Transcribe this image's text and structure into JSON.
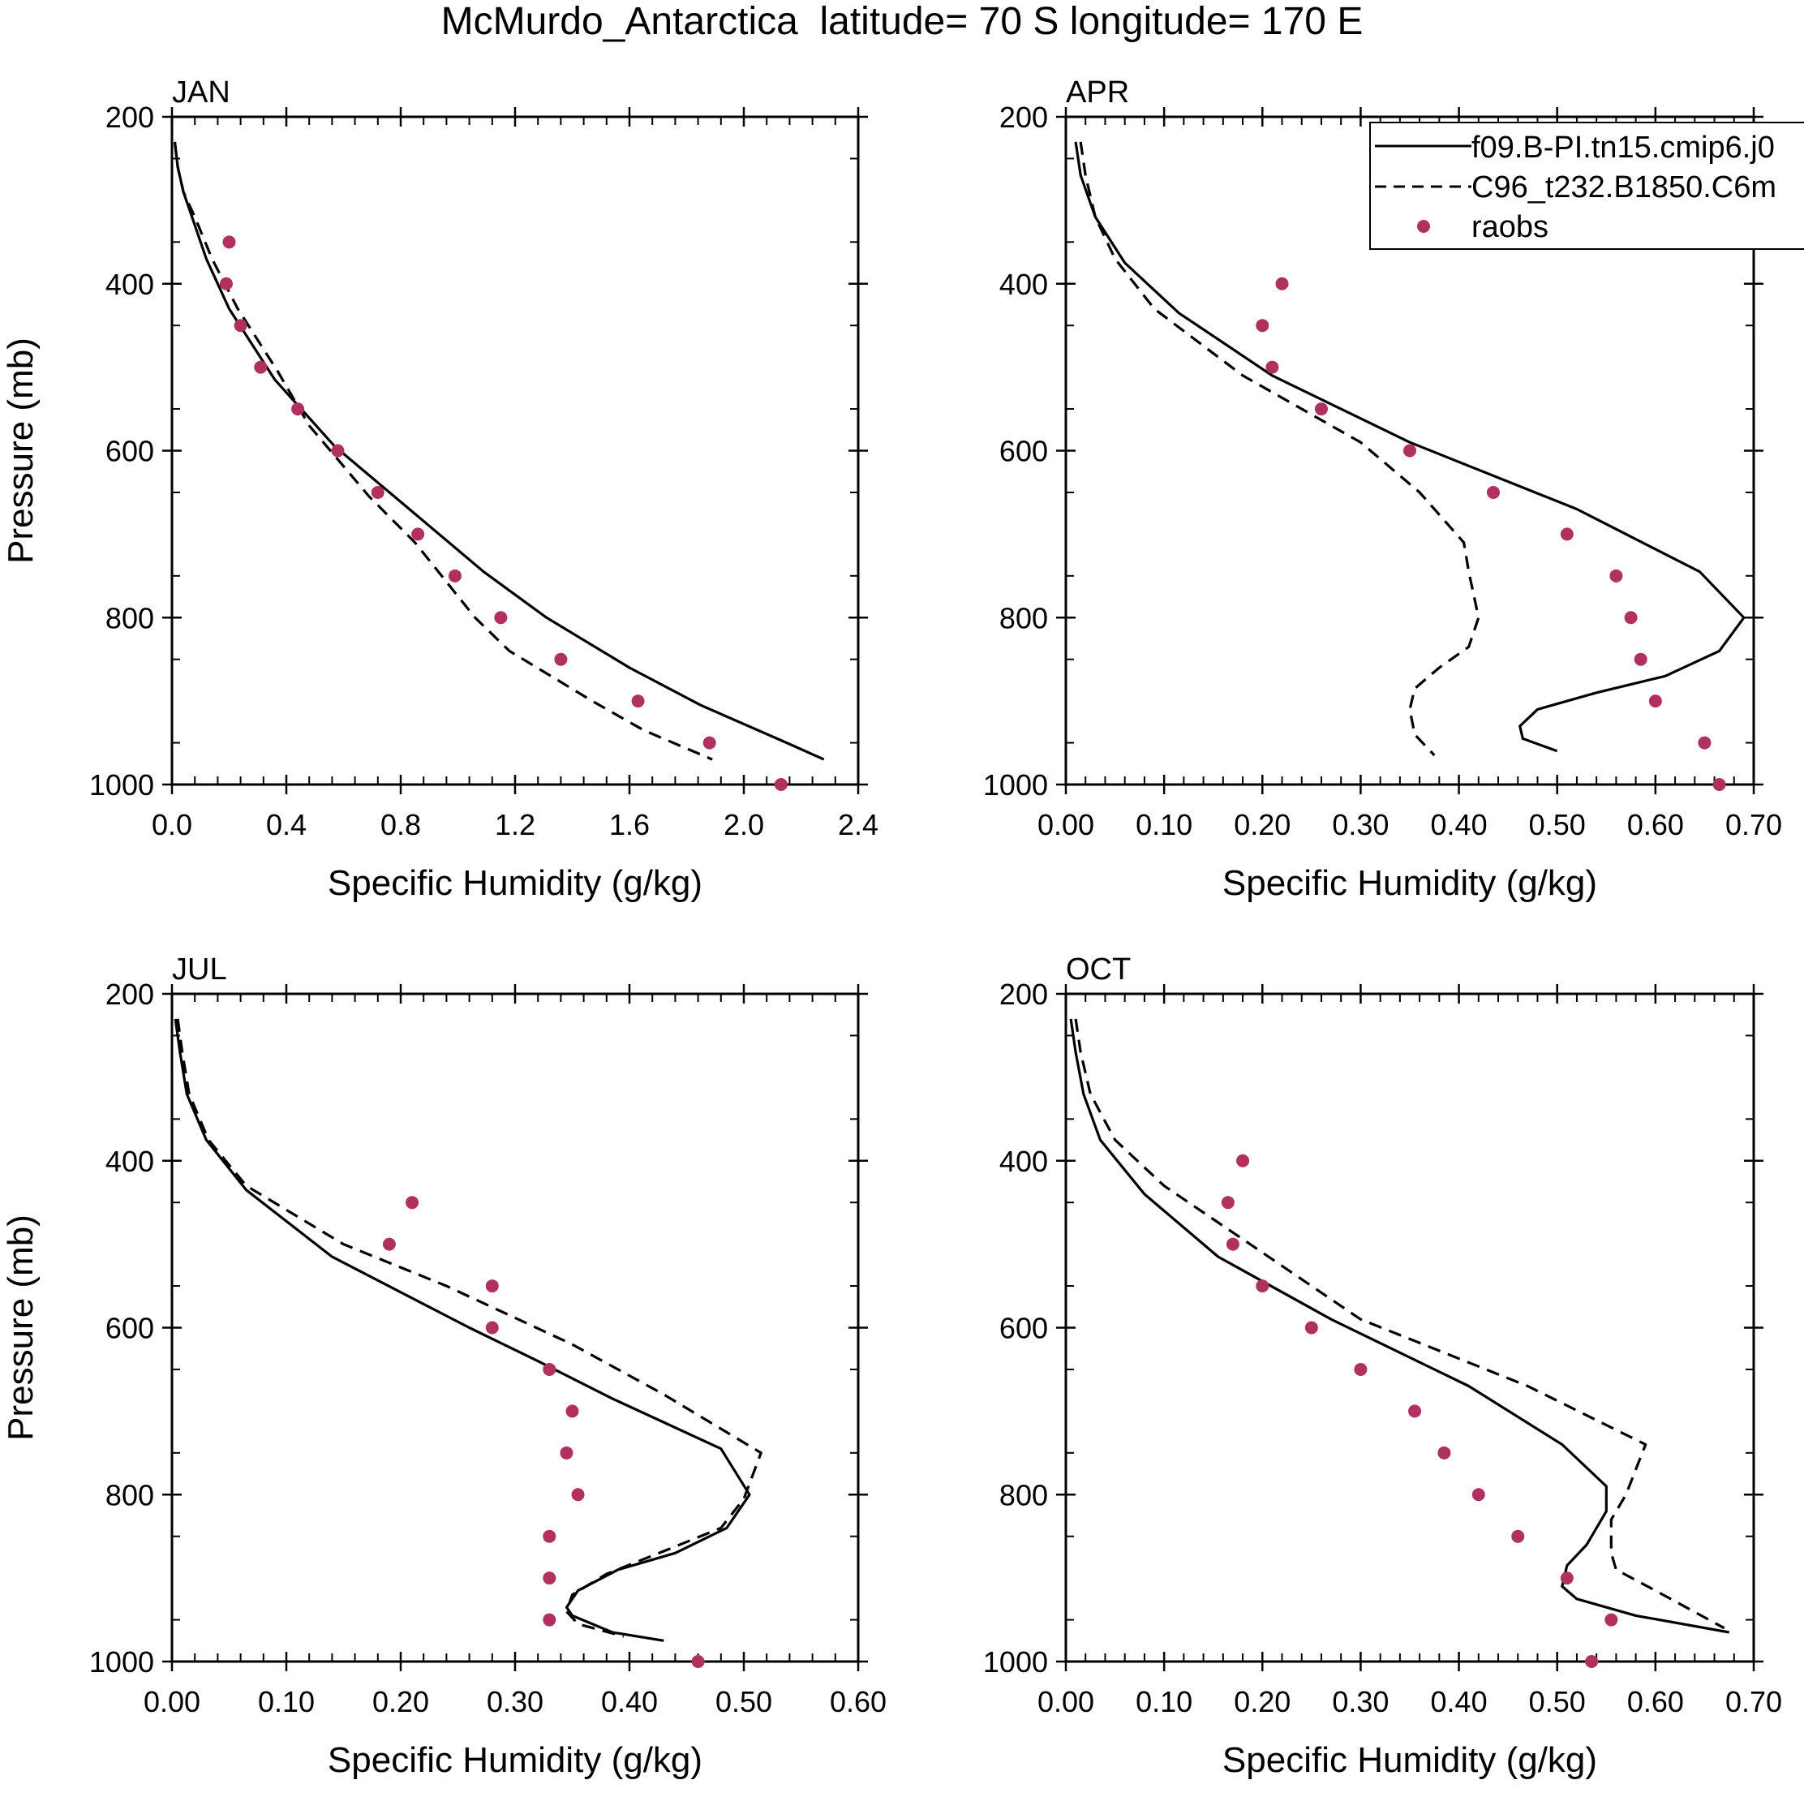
{
  "figure_title": "McMurdo_Antarctica  latitude= 70 S longitude= 170 E",
  "legend": {
    "entries": [
      {
        "label": "f09.B-PI.tn15.cmip6.j0",
        "style": "solid"
      },
      {
        "label": "C96_t232.B1850.C6m",
        "style": "dashed"
      },
      {
        "label": "raobs",
        "style": "dot"
      }
    ]
  },
  "colors": {
    "obs": "#b03060",
    "line": "#000000"
  },
  "chart_data": [
    {
      "type": "line",
      "panel": "JAN",
      "xlabel": "Specific Humidity (g/kg)",
      "ylabel": "Pressure (mb)",
      "xlim": [
        0,
        2.4
      ],
      "ylim": [
        200,
        1000
      ],
      "y_inverted": true,
      "xticks": [
        0,
        0.4,
        0.8,
        1.2,
        1.6,
        2.0,
        2.4
      ],
      "xtick_labels": [
        "0.0",
        "0.4",
        "0.8",
        "1.2",
        "1.6",
        "2.0",
        "2.4"
      ],
      "yticks": [
        200,
        400,
        600,
        800,
        1000
      ],
      "ytick_labels": [
        "200",
        "400",
        "600",
        "800",
        "1000"
      ],
      "series": [
        {
          "name": "f09.B-PI.tn15.cmip6.j0",
          "style": "solid",
          "points": [
            [
              0.01,
              230
            ],
            [
              0.02,
              260
            ],
            [
              0.04,
              290
            ],
            [
              0.07,
              320
            ],
            [
              0.12,
              370
            ],
            [
              0.2,
              430
            ],
            [
              0.36,
              515
            ],
            [
              0.57,
              595
            ],
            [
              0.83,
              670
            ],
            [
              1.09,
              745
            ],
            [
              1.31,
              800
            ],
            [
              1.6,
              860
            ],
            [
              1.85,
              905
            ],
            [
              2.15,
              950
            ],
            [
              2.28,
              970
            ]
          ]
        },
        {
          "name": "C96_t232.B1850.C6m",
          "style": "dashed",
          "points": [
            [
              0.01,
              230
            ],
            [
              0.02,
              260
            ],
            [
              0.04,
              290
            ],
            [
              0.08,
              320
            ],
            [
              0.14,
              370
            ],
            [
              0.23,
              430
            ],
            [
              0.37,
              505
            ],
            [
              0.48,
              570
            ],
            [
              0.69,
              655
            ],
            [
              0.85,
              710
            ],
            [
              1.06,
              800
            ],
            [
              1.18,
              840
            ],
            [
              1.47,
              900
            ],
            [
              1.65,
              935
            ],
            [
              1.89,
              970
            ]
          ]
        },
        {
          "name": "raobs",
          "style": "dot",
          "points": [
            [
              0.2,
              350
            ],
            [
              0.19,
              400
            ],
            [
              0.24,
              450
            ],
            [
              0.31,
              500
            ],
            [
              0.44,
              550
            ],
            [
              0.58,
              600
            ],
            [
              0.72,
              650
            ],
            [
              0.86,
              700
            ],
            [
              0.99,
              750
            ],
            [
              1.15,
              800
            ],
            [
              1.36,
              850
            ],
            [
              1.63,
              900
            ],
            [
              1.88,
              950
            ],
            [
              2.13,
              1000
            ]
          ]
        }
      ]
    },
    {
      "type": "line",
      "panel": "APR",
      "xlabel": "Specific Humidity (g/kg)",
      "ylabel": "",
      "xlim": [
        0,
        0.7
      ],
      "ylim": [
        200,
        1000
      ],
      "y_inverted": true,
      "xticks": [
        0,
        0.1,
        0.2,
        0.3,
        0.4,
        0.5,
        0.6,
        0.7
      ],
      "xtick_labels": [
        "0.00",
        "0.10",
        "0.20",
        "0.30",
        "0.40",
        "0.50",
        "0.60",
        "0.70"
      ],
      "yticks": [
        200,
        400,
        600,
        800,
        1000
      ],
      "ytick_labels": [
        "200",
        "400",
        "600",
        "800",
        "1000"
      ],
      "series": [
        {
          "name": "f09.B-PI.tn15.cmip6.j0",
          "style": "solid",
          "points": [
            [
              0.01,
              230
            ],
            [
              0.015,
              270
            ],
            [
              0.03,
              320
            ],
            [
              0.06,
              375
            ],
            [
              0.115,
              435
            ],
            [
              0.21,
              510
            ],
            [
              0.35,
              590
            ],
            [
              0.52,
              670
            ],
            [
              0.645,
              745
            ],
            [
              0.69,
              800
            ],
            [
              0.665,
              840
            ],
            [
              0.61,
              870
            ],
            [
              0.54,
              890
            ],
            [
              0.48,
              910
            ],
            [
              0.462,
              930
            ],
            [
              0.465,
              945
            ],
            [
              0.5,
              960
            ]
          ]
        },
        {
          "name": "C96_t232.B1850.C6m",
          "style": "dashed",
          "points": [
            [
              0.015,
              230
            ],
            [
              0.02,
              270
            ],
            [
              0.03,
              320
            ],
            [
              0.05,
              370
            ],
            [
              0.09,
              430
            ],
            [
              0.18,
              510
            ],
            [
              0.3,
              590
            ],
            [
              0.36,
              650
            ],
            [
              0.405,
              710
            ],
            [
              0.41,
              745
            ],
            [
              0.42,
              800
            ],
            [
              0.41,
              835
            ],
            [
              0.38,
              860
            ],
            [
              0.355,
              885
            ],
            [
              0.35,
              910
            ],
            [
              0.355,
              940
            ],
            [
              0.375,
              965
            ]
          ]
        },
        {
          "name": "raobs",
          "style": "dot",
          "points": [
            [
              0.22,
              400
            ],
            [
              0.2,
              450
            ],
            [
              0.21,
              500
            ],
            [
              0.26,
              550
            ],
            [
              0.35,
              600
            ],
            [
              0.435,
              650
            ],
            [
              0.51,
              700
            ],
            [
              0.56,
              750
            ],
            [
              0.575,
              800
            ],
            [
              0.585,
              850
            ],
            [
              0.6,
              900
            ],
            [
              0.65,
              950
            ],
            [
              0.665,
              1000
            ]
          ]
        }
      ]
    },
    {
      "type": "line",
      "panel": "JUL",
      "xlabel": "Specific Humidity (g/kg)",
      "ylabel": "Pressure (mb)",
      "xlim": [
        0,
        0.6
      ],
      "ylim": [
        200,
        1000
      ],
      "y_inverted": true,
      "xticks": [
        0,
        0.1,
        0.2,
        0.3,
        0.4,
        0.5,
        0.6
      ],
      "xtick_labels": [
        "0.00",
        "0.10",
        "0.20",
        "0.30",
        "0.40",
        "0.50",
        "0.60"
      ],
      "yticks": [
        200,
        400,
        600,
        800,
        1000
      ],
      "ytick_labels": [
        "200",
        "400",
        "600",
        "800",
        "1000"
      ],
      "series": [
        {
          "name": "f09.B-PI.tn15.cmip6.j0",
          "style": "solid",
          "points": [
            [
              0.003,
              230
            ],
            [
              0.007,
              270
            ],
            [
              0.013,
              320
            ],
            [
              0.03,
              375
            ],
            [
              0.065,
              435
            ],
            [
              0.14,
              515
            ],
            [
              0.26,
              600
            ],
            [
              0.32,
              640
            ],
            [
              0.385,
              685
            ],
            [
              0.48,
              745
            ],
            [
              0.505,
              800
            ],
            [
              0.485,
              840
            ],
            [
              0.44,
              870
            ],
            [
              0.39,
              890
            ],
            [
              0.355,
              915
            ],
            [
              0.345,
              935
            ],
            [
              0.35,
              945
            ],
            [
              0.385,
              965
            ],
            [
              0.43,
              975
            ]
          ]
        },
        {
          "name": "C96_t232.B1850.C6m",
          "style": "dashed",
          "points": [
            [
              0.005,
              230
            ],
            [
              0.009,
              270
            ],
            [
              0.015,
              320
            ],
            [
              0.032,
              375
            ],
            [
              0.065,
              430
            ],
            [
              0.15,
              500
            ],
            [
              0.24,
              550
            ],
            [
              0.35,
              620
            ],
            [
              0.43,
              680
            ],
            [
              0.515,
              750
            ],
            [
              0.5,
              805
            ],
            [
              0.48,
              840
            ],
            [
              0.435,
              865
            ],
            [
              0.38,
              895
            ],
            [
              0.35,
              920
            ],
            [
              0.345,
              940
            ],
            [
              0.355,
              955
            ],
            [
              0.395,
              970
            ]
          ]
        },
        {
          "name": "raobs",
          "style": "dot",
          "points": [
            [
              0.21,
              450
            ],
            [
              0.19,
              500
            ],
            [
              0.28,
              550
            ],
            [
              0.28,
              600
            ],
            [
              0.33,
              650
            ],
            [
              0.35,
              700
            ],
            [
              0.345,
              750
            ],
            [
              0.355,
              800
            ],
            [
              0.33,
              850
            ],
            [
              0.33,
              900
            ],
            [
              0.33,
              950
            ],
            [
              0.46,
              1000
            ]
          ]
        }
      ]
    },
    {
      "type": "line",
      "panel": "OCT",
      "xlabel": "Specific Humidity (g/kg)",
      "ylabel": "",
      "xlim": [
        0,
        0.7
      ],
      "ylim": [
        200,
        1000
      ],
      "y_inverted": true,
      "xticks": [
        0,
        0.1,
        0.2,
        0.3,
        0.4,
        0.5,
        0.6,
        0.7
      ],
      "xtick_labels": [
        "0.00",
        "0.10",
        "0.20",
        "0.30",
        "0.40",
        "0.50",
        "0.60",
        "0.70"
      ],
      "yticks": [
        200,
        400,
        600,
        800,
        1000
      ],
      "ytick_labels": [
        "200",
        "400",
        "600",
        "800",
        "1000"
      ],
      "series": [
        {
          "name": "f09.B-PI.tn15.cmip6.j0",
          "style": "solid",
          "points": [
            [
              0.005,
              230
            ],
            [
              0.01,
              270
            ],
            [
              0.018,
              320
            ],
            [
              0.035,
              375
            ],
            [
              0.08,
              440
            ],
            [
              0.155,
              515
            ],
            [
              0.27,
              590
            ],
            [
              0.41,
              670
            ],
            [
              0.505,
              740
            ],
            [
              0.55,
              790
            ],
            [
              0.55,
              820
            ],
            [
              0.53,
              860
            ],
            [
              0.51,
              885
            ],
            [
              0.505,
              910
            ],
            [
              0.52,
              925
            ],
            [
              0.58,
              945
            ],
            [
              0.675,
              965
            ]
          ]
        },
        {
          "name": "C96_t232.B1850.C6m",
          "style": "dashed",
          "points": [
            [
              0.01,
              230
            ],
            [
              0.015,
              270
            ],
            [
              0.025,
              320
            ],
            [
              0.05,
              375
            ],
            [
              0.1,
              430
            ],
            [
              0.2,
              510
            ],
            [
              0.3,
              590
            ],
            [
              0.47,
              670
            ],
            [
              0.59,
              740
            ],
            [
              0.57,
              800
            ],
            [
              0.555,
              830
            ],
            [
              0.555,
              870
            ],
            [
              0.56,
              890
            ],
            [
              0.6,
              915
            ],
            [
              0.67,
              960
            ]
          ]
        },
        {
          "name": "raobs",
          "style": "dot",
          "points": [
            [
              0.18,
              400
            ],
            [
              0.165,
              450
            ],
            [
              0.17,
              500
            ],
            [
              0.2,
              550
            ],
            [
              0.25,
              600
            ],
            [
              0.3,
              650
            ],
            [
              0.355,
              700
            ],
            [
              0.385,
              750
            ],
            [
              0.42,
              800
            ],
            [
              0.46,
              850
            ],
            [
              0.51,
              900
            ],
            [
              0.555,
              950
            ],
            [
              0.535,
              1000
            ]
          ]
        }
      ]
    }
  ]
}
